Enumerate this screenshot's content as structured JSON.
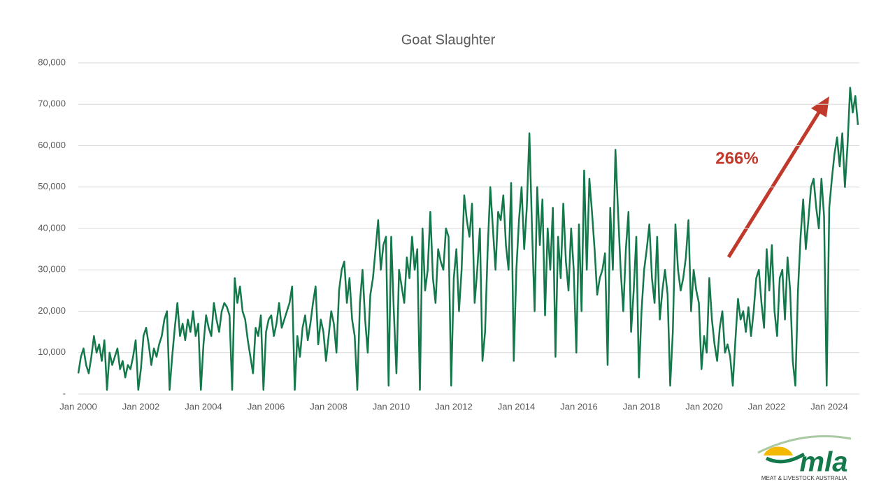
{
  "chart_data": {
    "type": "line",
    "title": "Goat Slaughter",
    "annotation": "266%",
    "logo": {
      "text": "mla",
      "tagline": "MEAT & LIVESTOCK AUSTRALIA"
    },
    "xlim": [
      "2000-01",
      "2024-12"
    ],
    "xticks": [
      {
        "value": "2000-01",
        "label": "Jan 2000"
      },
      {
        "value": "2002-01",
        "label": "Jan 2002"
      },
      {
        "value": "2004-01",
        "label": "Jan 2004"
      },
      {
        "value": "2006-01",
        "label": "Jan 2006"
      },
      {
        "value": "2008-01",
        "label": "Jan 2008"
      },
      {
        "value": "2010-01",
        "label": "Jan 2010"
      },
      {
        "value": "2012-01",
        "label": "Jan 2012"
      },
      {
        "value": "2014-01",
        "label": "Jan 2014"
      },
      {
        "value": "2016-01",
        "label": "Jan 2016"
      },
      {
        "value": "2018-01",
        "label": "Jan 2018"
      },
      {
        "value": "2020-01",
        "label": "Jan 2020"
      },
      {
        "value": "2022-01",
        "label": "Jan 2022"
      },
      {
        "value": "2024-01",
        "label": "Jan 2024"
      }
    ],
    "ylim": [
      0,
      80000
    ],
    "yticks": [
      {
        "value": 0,
        "label": "-"
      },
      {
        "value": 10000,
        "label": "10,000"
      },
      {
        "value": 20000,
        "label": "20,000"
      },
      {
        "value": 30000,
        "label": "30,000"
      },
      {
        "value": 40000,
        "label": "40,000"
      },
      {
        "value": 50000,
        "label": "50,000"
      },
      {
        "value": 60000,
        "label": "60,000"
      },
      {
        "value": 70000,
        "label": "70,000"
      },
      {
        "value": 80000,
        "label": "80,000"
      }
    ],
    "grid": true,
    "x": [
      "2000-01",
      "2000-02",
      "2000-03",
      "2000-04",
      "2000-05",
      "2000-06",
      "2000-07",
      "2000-08",
      "2000-09",
      "2000-10",
      "2000-11",
      "2000-12",
      "2001-01",
      "2001-02",
      "2001-03",
      "2001-04",
      "2001-05",
      "2001-06",
      "2001-07",
      "2001-08",
      "2001-09",
      "2001-10",
      "2001-11",
      "2001-12",
      "2002-01",
      "2002-02",
      "2002-03",
      "2002-04",
      "2002-05",
      "2002-06",
      "2002-07",
      "2002-08",
      "2002-09",
      "2002-10",
      "2002-11",
      "2002-12",
      "2003-01",
      "2003-02",
      "2003-03",
      "2003-04",
      "2003-05",
      "2003-06",
      "2003-07",
      "2003-08",
      "2003-09",
      "2003-10",
      "2003-11",
      "2003-12",
      "2004-01",
      "2004-02",
      "2004-03",
      "2004-04",
      "2004-05",
      "2004-06",
      "2004-07",
      "2004-08",
      "2004-09",
      "2004-10",
      "2004-11",
      "2004-12",
      "2005-01",
      "2005-02",
      "2005-03",
      "2005-04",
      "2005-05",
      "2005-06",
      "2005-07",
      "2005-08",
      "2005-09",
      "2005-10",
      "2005-11",
      "2005-12",
      "2006-01",
      "2006-02",
      "2006-03",
      "2006-04",
      "2006-05",
      "2006-06",
      "2006-07",
      "2006-08",
      "2006-09",
      "2006-10",
      "2006-11",
      "2006-12",
      "2007-01",
      "2007-02",
      "2007-03",
      "2007-04",
      "2007-05",
      "2007-06",
      "2007-07",
      "2007-08",
      "2007-09",
      "2007-10",
      "2007-11",
      "2007-12",
      "2008-01",
      "2008-02",
      "2008-03",
      "2008-04",
      "2008-05",
      "2008-06",
      "2008-07",
      "2008-08",
      "2008-09",
      "2008-10",
      "2008-11",
      "2008-12",
      "2009-01",
      "2009-02",
      "2009-03",
      "2009-04",
      "2009-05",
      "2009-06",
      "2009-07",
      "2009-08",
      "2009-09",
      "2009-10",
      "2009-11",
      "2009-12",
      "2010-01",
      "2010-02",
      "2010-03",
      "2010-04",
      "2010-05",
      "2010-06",
      "2010-07",
      "2010-08",
      "2010-09",
      "2010-10",
      "2010-11",
      "2010-12",
      "2011-01",
      "2011-02",
      "2011-03",
      "2011-04",
      "2011-05",
      "2011-06",
      "2011-07",
      "2011-08",
      "2011-09",
      "2011-10",
      "2011-11",
      "2011-12",
      "2012-01",
      "2012-02",
      "2012-03",
      "2012-04",
      "2012-05",
      "2012-06",
      "2012-07",
      "2012-08",
      "2012-09",
      "2012-10",
      "2012-11",
      "2012-12",
      "2013-01",
      "2013-02",
      "2013-03",
      "2013-04",
      "2013-05",
      "2013-06",
      "2013-07",
      "2013-08",
      "2013-09",
      "2013-10",
      "2013-11",
      "2013-12",
      "2014-01",
      "2014-02",
      "2014-03",
      "2014-04",
      "2014-05",
      "2014-06",
      "2014-07",
      "2014-08",
      "2014-09",
      "2014-10",
      "2014-11",
      "2014-12",
      "2015-01",
      "2015-02",
      "2015-03",
      "2015-04",
      "2015-05",
      "2015-06",
      "2015-07",
      "2015-08",
      "2015-09",
      "2015-10",
      "2015-11",
      "2015-12",
      "2016-01",
      "2016-02",
      "2016-03",
      "2016-04",
      "2016-05",
      "2016-06",
      "2016-07",
      "2016-08",
      "2016-09",
      "2016-10",
      "2016-11",
      "2016-12",
      "2017-01",
      "2017-02",
      "2017-03",
      "2017-04",
      "2017-05",
      "2017-06",
      "2017-07",
      "2017-08",
      "2017-09",
      "2017-10",
      "2017-11",
      "2017-12",
      "2018-01",
      "2018-02",
      "2018-03",
      "2018-04",
      "2018-05",
      "2018-06",
      "2018-07",
      "2018-08",
      "2018-09",
      "2018-10",
      "2018-11",
      "2018-12",
      "2019-01",
      "2019-02",
      "2019-03",
      "2019-04",
      "2019-05",
      "2019-06",
      "2019-07",
      "2019-08",
      "2019-09",
      "2019-10",
      "2019-11",
      "2019-12",
      "2020-01",
      "2020-02",
      "2020-03",
      "2020-04",
      "2020-05",
      "2020-06",
      "2020-07",
      "2020-08",
      "2020-09",
      "2020-10",
      "2020-11",
      "2020-12",
      "2021-01",
      "2021-02",
      "2021-03",
      "2021-04",
      "2021-05",
      "2021-06",
      "2021-07",
      "2021-08",
      "2021-09",
      "2021-10",
      "2021-11",
      "2021-12",
      "2022-01",
      "2022-02",
      "2022-03",
      "2022-04",
      "2022-05",
      "2022-06",
      "2022-07",
      "2022-08",
      "2022-09",
      "2022-10",
      "2022-11",
      "2022-12",
      "2023-01",
      "2023-02",
      "2023-03",
      "2023-04",
      "2023-05",
      "2023-06",
      "2023-07",
      "2023-08",
      "2023-09",
      "2023-10",
      "2023-11",
      "2023-12",
      "2024-01",
      "2024-02",
      "2024-03",
      "2024-04",
      "2024-05",
      "2024-06",
      "2024-07",
      "2024-08",
      "2024-09",
      "2024-10",
      "2024-11",
      "2024-12"
    ],
    "series": [
      {
        "name": "Goat Slaughter",
        "color": "#13784a",
        "values": [
          5000,
          9000,
          11000,
          7000,
          5000,
          9000,
          14000,
          10000,
          12000,
          8000,
          13000,
          1000,
          10000,
          7000,
          9000,
          11000,
          6000,
          8000,
          4000,
          7000,
          6000,
          9000,
          13000,
          1000,
          6000,
          14000,
          16000,
          12000,
          7000,
          11000,
          9000,
          12000,
          14000,
          18000,
          20000,
          1000,
          9000,
          16000,
          22000,
          14000,
          17000,
          13000,
          18000,
          15000,
          20000,
          14000,
          17000,
          1000,
          12000,
          19000,
          16000,
          14000,
          22000,
          18000,
          15000,
          20000,
          22000,
          21000,
          19000,
          1000,
          28000,
          22000,
          26000,
          20000,
          18000,
          13000,
          9000,
          5000,
          16000,
          14000,
          19000,
          1000,
          15000,
          18000,
          19000,
          14000,
          17000,
          22000,
          16000,
          18000,
          20000,
          22000,
          26000,
          1000,
          14000,
          9000,
          16000,
          19000,
          13000,
          17000,
          22000,
          26000,
          12000,
          18000,
          15000,
          8000,
          14000,
          20000,
          17000,
          10000,
          25000,
          30000,
          32000,
          22000,
          28000,
          18000,
          14000,
          1000,
          22000,
          30000,
          18000,
          10000,
          24000,
          28000,
          35000,
          42000,
          30000,
          36000,
          38000,
          2000,
          38000,
          20000,
          5000,
          30000,
          26000,
          22000,
          33000,
          28000,
          38000,
          30000,
          35000,
          1000,
          40000,
          25000,
          30000,
          44000,
          28000,
          22000,
          35000,
          32000,
          30000,
          40000,
          38000,
          2000,
          28000,
          35000,
          20000,
          30000,
          48000,
          42000,
          38000,
          46000,
          22000,
          30000,
          40000,
          8000,
          15000,
          35000,
          50000,
          40000,
          30000,
          44000,
          42000,
          48000,
          36000,
          30000,
          51000,
          8000,
          30000,
          42000,
          50000,
          35000,
          45000,
          63000,
          40000,
          20000,
          50000,
          36000,
          47000,
          19000,
          40000,
          30000,
          45000,
          9000,
          38000,
          28000,
          46000,
          32000,
          25000,
          40000,
          30000,
          10000,
          41000,
          20000,
          54000,
          30000,
          52000,
          44000,
          35000,
          24000,
          28000,
          30000,
          34000,
          7000,
          45000,
          30000,
          59000,
          44000,
          30000,
          20000,
          35000,
          44000,
          15000,
          25000,
          38000,
          4000,
          20000,
          30000,
          35000,
          41000,
          28000,
          22000,
          38000,
          18000,
          25000,
          30000,
          24000,
          2000,
          15000,
          41000,
          30000,
          25000,
          28000,
          33000,
          42000,
          20000,
          30000,
          25000,
          22000,
          6000,
          14000,
          10000,
          28000,
          18000,
          12000,
          8000,
          16000,
          20000,
          10000,
          12000,
          9000,
          2000,
          13000,
          23000,
          18000,
          20000,
          15000,
          21000,
          14000,
          20000,
          28000,
          30000,
          22000,
          16000,
          35000,
          25000,
          36000,
          20000,
          14000,
          28000,
          30000,
          18000,
          33000,
          25000,
          8000,
          2000,
          25000,
          38000,
          47000,
          35000,
          42000,
          50000,
          52000,
          45000,
          40000,
          52000,
          43000,
          2000,
          45000,
          52000,
          58000,
          62000,
          55000,
          63000,
          50000,
          60000,
          74000,
          68000,
          72000,
          65000
        ]
      }
    ]
  }
}
